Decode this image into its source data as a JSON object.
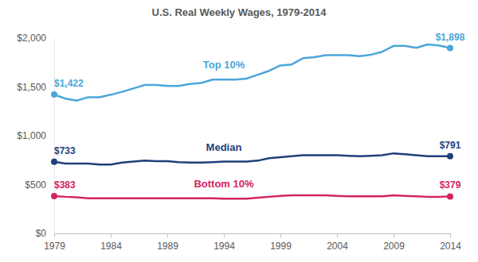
{
  "chart_data": {
    "type": "line",
    "title": "U.S. Real Weekly Wages, 1979-2014",
    "x": [
      1979,
      1980,
      1981,
      1982,
      1983,
      1984,
      1985,
      1986,
      1987,
      1988,
      1989,
      1990,
      1991,
      1992,
      1993,
      1994,
      1995,
      1996,
      1997,
      1998,
      1999,
      2000,
      2001,
      2002,
      2003,
      2004,
      2005,
      2006,
      2007,
      2008,
      2009,
      2010,
      2011,
      2012,
      2013,
      2014
    ],
    "series": [
      {
        "name": "Top 10%",
        "color": "#4ba6d9",
        "values": [
          1422,
          1380,
          1360,
          1395,
          1395,
          1420,
          1450,
          1485,
          1520,
          1520,
          1510,
          1510,
          1530,
          1540,
          1575,
          1575,
          1575,
          1585,
          1625,
          1665,
          1720,
          1730,
          1795,
          1805,
          1825,
          1825,
          1825,
          1815,
          1830,
          1860,
          1920,
          1920,
          1900,
          1935,
          1925,
          1898
        ],
        "value_labels": [
          "$1,422",
          null,
          null,
          null,
          null,
          null,
          null,
          null,
          null,
          null,
          null,
          null,
          null,
          null,
          null,
          null,
          null,
          null,
          null,
          null,
          null,
          null,
          null,
          null,
          null,
          null,
          null,
          null,
          null,
          null,
          null,
          null,
          null,
          null,
          null,
          "$1,898"
        ]
      },
      {
        "name": "Median",
        "color": "#1f3f7c",
        "values": [
          733,
          715,
          715,
          715,
          705,
          705,
          725,
          735,
          745,
          740,
          740,
          730,
          725,
          725,
          730,
          735,
          735,
          735,
          745,
          770,
          780,
          790,
          800,
          800,
          800,
          800,
          795,
          790,
          795,
          800,
          820,
          810,
          800,
          790,
          790,
          791
        ],
        "value_labels": [
          "$733",
          null,
          null,
          null,
          null,
          null,
          null,
          null,
          null,
          null,
          null,
          null,
          null,
          null,
          null,
          null,
          null,
          null,
          null,
          null,
          null,
          null,
          null,
          null,
          null,
          null,
          null,
          null,
          null,
          null,
          null,
          null,
          null,
          null,
          null,
          "$791"
        ]
      },
      {
        "name": "Bottom 10%",
        "color": "#d4245f",
        "values": [
          383,
          375,
          370,
          360,
          360,
          360,
          360,
          360,
          360,
          360,
          360,
          360,
          360,
          360,
          360,
          355,
          355,
          355,
          365,
          375,
          385,
          390,
          390,
          390,
          390,
          385,
          380,
          380,
          380,
          380,
          390,
          385,
          380,
          375,
          375,
          379
        ],
        "value_labels": [
          "$383",
          null,
          null,
          null,
          null,
          null,
          null,
          null,
          null,
          null,
          null,
          null,
          null,
          null,
          null,
          null,
          null,
          null,
          null,
          null,
          null,
          null,
          null,
          null,
          null,
          null,
          null,
          null,
          null,
          null,
          null,
          null,
          null,
          null,
          null,
          "$379"
        ]
      }
    ],
    "xlim": [
      1979,
      2014
    ],
    "xticks": [
      1979,
      1984,
      1989,
      1994,
      1999,
      2004,
      2009,
      2014
    ],
    "ylim": [
      0,
      2000
    ],
    "yticks": [
      {
        "value": 0,
        "label": "$0"
      },
      {
        "value": 500,
        "label": "$500"
      },
      {
        "value": 1000,
        "label": "$1,000"
      },
      {
        "value": 1500,
        "label": "$1,500"
      },
      {
        "value": 2000,
        "label": "$2,000"
      }
    ],
    "grid": false
  }
}
